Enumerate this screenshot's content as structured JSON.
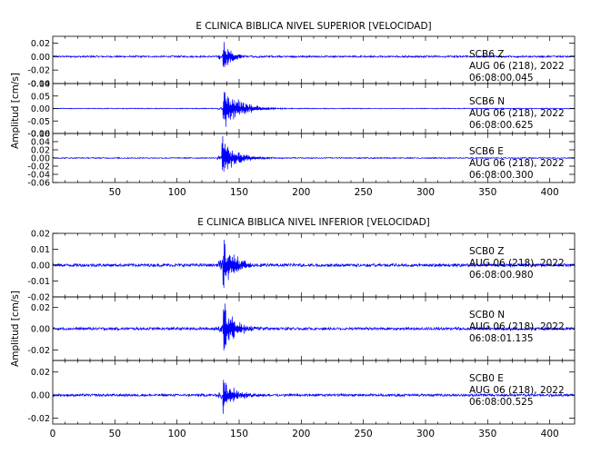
{
  "chart_data": [
    {
      "type": "line",
      "title": "E CLINICA BIBLICA NIVEL SUPERIOR [VELOCIDAD]",
      "ylabel": "Amplitud [cm/s]",
      "xlabel": "",
      "xlim": [
        0,
        420
      ],
      "x_ticks": [
        50,
        100,
        150,
        200,
        250,
        300,
        350,
        400
      ],
      "series_color": "#0000ff",
      "panels": [
        {
          "station": "SCB6",
          "component": "Z",
          "date": "AUG 06 (218), 2022",
          "time": "06:08:00.045",
          "ylim": [
            -0.04,
            0.03
          ],
          "y_ticks": [
            0.02,
            0.0,
            -0.02,
            -0.04
          ],
          "y_tick_labels": [
            "0.02",
            "0.00",
            "-0.02",
            "-0.04"
          ],
          "noise": 0.0012,
          "arrival": 137,
          "peak": 0.026,
          "decay": 6
        },
        {
          "station": "SCB6",
          "component": "N",
          "date": "AUG 06 (218), 2022",
          "time": "06:08:00.625",
          "ylim": [
            -0.1,
            0.1
          ],
          "y_ticks": [
            0.1,
            0.05,
            0.0,
            -0.05,
            -0.1
          ],
          "y_tick_labels": [
            "0.10",
            "0.05",
            "0.00",
            "-0.05",
            "-0.10"
          ],
          "noise": 0.0015,
          "arrival": 137,
          "peak": 0.095,
          "decay": 12
        },
        {
          "station": "SCB6",
          "component": "E",
          "date": "AUG 06 (218), 2022",
          "time": "06:08:00.300",
          "ylim": [
            -0.06,
            0.06
          ],
          "y_ticks": [
            0.06,
            0.04,
            0.02,
            0.0,
            -0.02,
            -0.04,
            -0.06
          ],
          "y_tick_labels": [
            "0.06",
            "0.04",
            "0.02",
            "0.00",
            "-0.02",
            "-0.04",
            "-0.06"
          ],
          "noise": 0.0012,
          "arrival": 136,
          "peak": 0.055,
          "decay": 10
        }
      ]
    },
    {
      "type": "line",
      "title": "E CLINICA BIBLICA NIVEL INFERIOR [VELOCIDAD]",
      "ylabel": "Amplitud [cm/s]",
      "xlabel": "",
      "xlim": [
        0,
        420
      ],
      "x_ticks": [
        0,
        50,
        100,
        150,
        200,
        250,
        300,
        350,
        400
      ],
      "series_color": "#0000ff",
      "panels": [
        {
          "station": "SCB0",
          "component": "Z",
          "date": "AUG 06 (218), 2022",
          "time": "06:08:00.980",
          "ylim": [
            -0.02,
            0.02
          ],
          "y_ticks": [
            0.02,
            0.01,
            0.0,
            -0.01,
            -0.02
          ],
          "y_tick_labels": [
            "0.02",
            "0.01",
            "0.00",
            "-0.01",
            "-0.02"
          ],
          "noise": 0.0009,
          "arrival": 137,
          "peak": 0.019,
          "decay": 8
        },
        {
          "station": "SCB0",
          "component": "N",
          "date": "AUG 06 (218), 2022",
          "time": "06:08:01.135",
          "ylim": [
            -0.03,
            0.03
          ],
          "y_ticks": [
            0.02,
            0.0,
            -0.02
          ],
          "y_tick_labels": [
            "0.02",
            "0.00",
            "-0.02"
          ],
          "noise": 0.0012,
          "arrival": 137,
          "peak": 0.028,
          "decay": 8
        },
        {
          "station": "SCB0",
          "component": "E",
          "date": "AUG 06 (218), 2022",
          "time": "06:08:00.525",
          "ylim": [
            -0.025,
            0.03
          ],
          "y_ticks": [
            0.02,
            0.0,
            -0.02
          ],
          "y_tick_labels": [
            "0.02",
            "0.00",
            "-0.02"
          ],
          "noise": 0.001,
          "arrival": 137,
          "peak": 0.018,
          "decay": 8
        }
      ]
    }
  ]
}
